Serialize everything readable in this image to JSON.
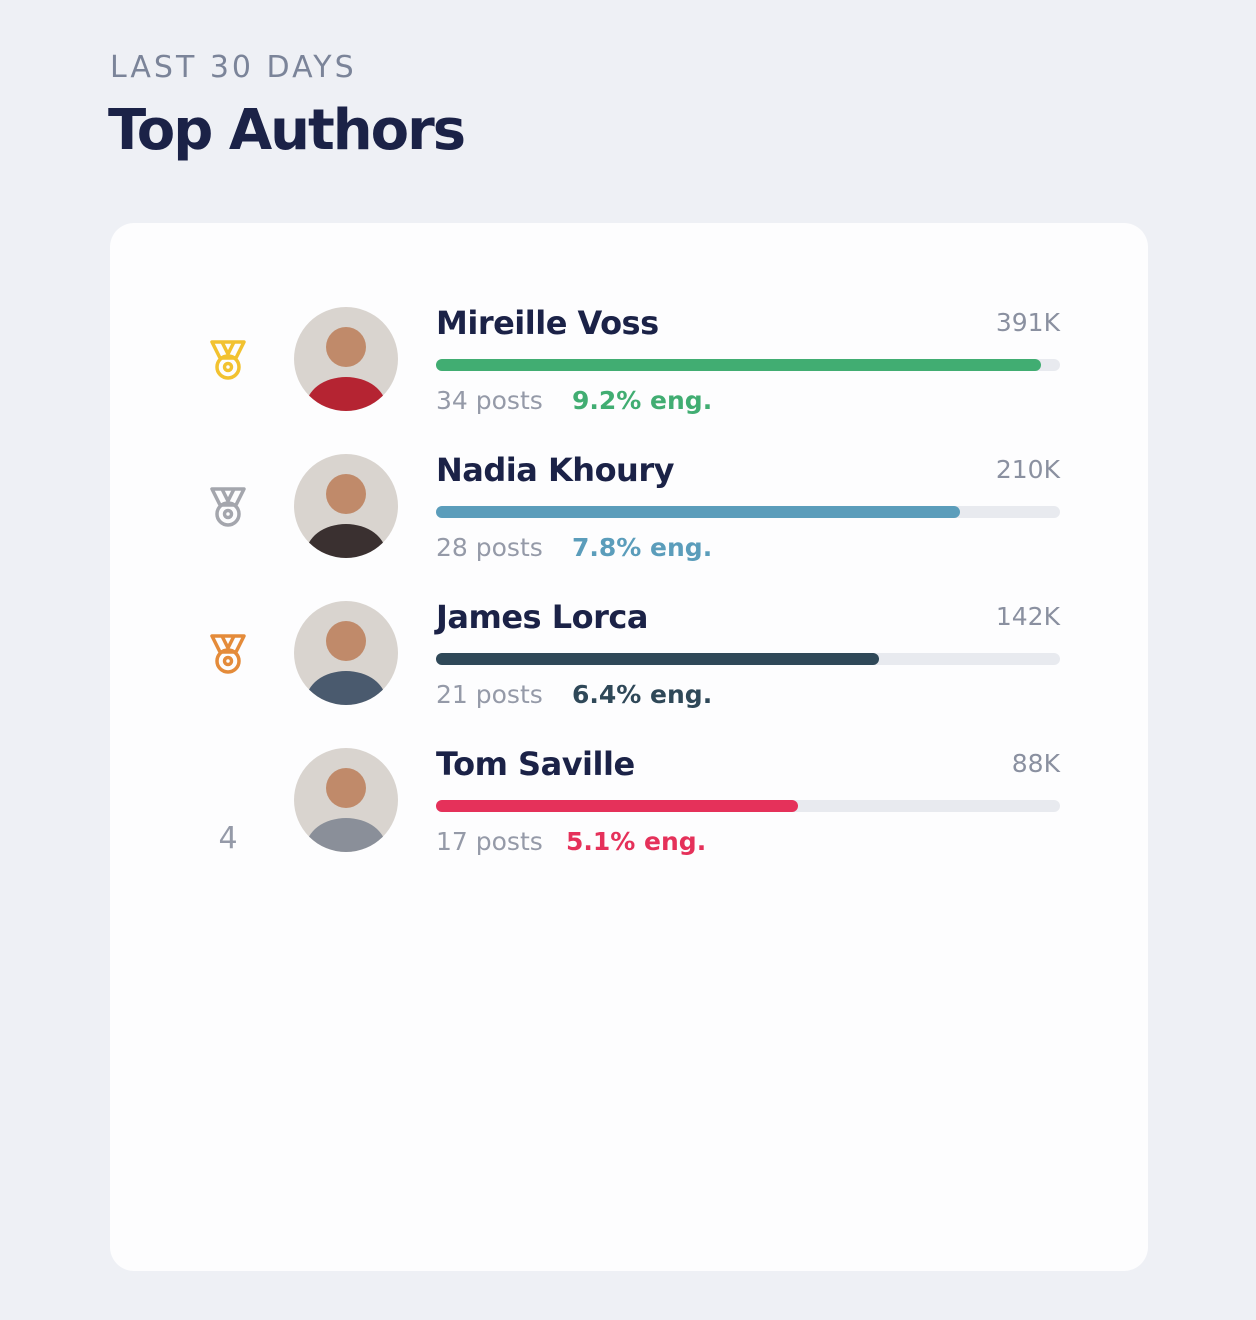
{
  "header": {
    "eyebrow": "LAST 30 DAYS",
    "title": "Top Authors"
  },
  "authors": [
    {
      "medal": "#f2c230",
      "name": "Mireille Voss",
      "reach": "391K",
      "progress": 97,
      "posts": "34 posts",
      "engagement": "9.2% eng.",
      "color": "#41ad72",
      "avatar": "#b52432"
    },
    {
      "medal": "#a4a6ad",
      "name": "Nadia Khoury",
      "reach": "210K",
      "progress": 84,
      "posts": "28 posts",
      "engagement": "7.8% eng.",
      "color": "#5b9dbb",
      "avatar": "#3a3030"
    },
    {
      "medal": "#e48b3a",
      "name": "James Lorca",
      "reach": "142K",
      "progress": 71,
      "posts": "21 posts",
      "engagement": "6.4% eng.",
      "color": "#2f4858",
      "avatar": "#4a5a6e"
    },
    {
      "rank": "4",
      "name": "Tom Saville",
      "reach": "88K",
      "progress": 58,
      "posts": "17 posts",
      "engagement": "5.1% eng.",
      "color": "#e5315a",
      "avatar": "#8a8f99"
    }
  ]
}
